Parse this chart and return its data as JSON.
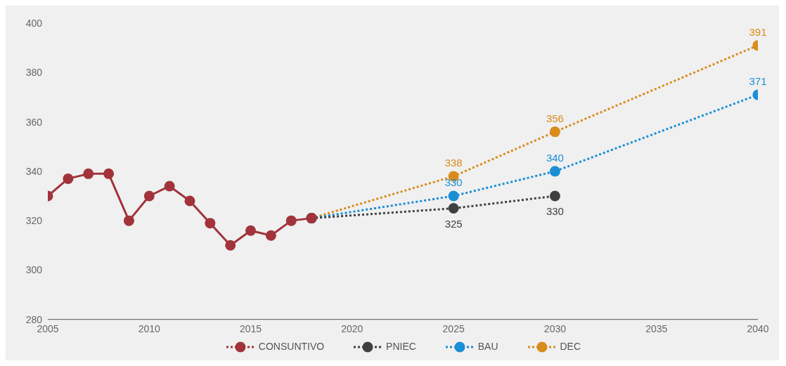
{
  "chart_data": {
    "type": "line",
    "xlim": [
      2005,
      2040
    ],
    "xticks": [
      2005,
      2010,
      2015,
      2020,
      2025,
      2030,
      2035,
      2040
    ],
    "ylim": [
      280,
      400
    ],
    "yticks": [
      280,
      300,
      320,
      340,
      360,
      380,
      400
    ],
    "grid": false,
    "legend": "bottom",
    "marker": "circle",
    "series": [
      {
        "name": "CONSUNTIVO",
        "color": "#a2333b",
        "line_style": "solid",
        "x": [
          2005,
          2006,
          2007,
          2008,
          2009,
          2010,
          2011,
          2012,
          2013,
          2014,
          2015,
          2016,
          2017,
          2018
        ],
        "values": [
          330,
          337,
          339,
          339,
          320,
          330,
          334,
          328,
          319,
          310,
          316,
          314,
          320,
          321
        ]
      },
      {
        "name": "PNIEC",
        "color": "#404040",
        "line_style": "dotted",
        "x": [
          2018,
          2025,
          2030
        ],
        "values": [
          321,
          325,
          330
        ],
        "value_labels": [
          null,
          "325",
          "330"
        ]
      },
      {
        "name": "BAU",
        "color": "#1a8fd6",
        "line_style": "dotted",
        "x": [
          2018,
          2025,
          2030,
          2040
        ],
        "values": [
          321,
          330,
          340,
          371
        ],
        "value_labels": [
          null,
          "330",
          "340",
          "371"
        ]
      },
      {
        "name": "DEC",
        "color": "#d98b1c",
        "line_style": "dotted",
        "x": [
          2018,
          2025,
          2030,
          2040
        ],
        "values": [
          321,
          338,
          356,
          391
        ],
        "value_labels": [
          null,
          "338",
          "356",
          "391"
        ]
      }
    ]
  }
}
